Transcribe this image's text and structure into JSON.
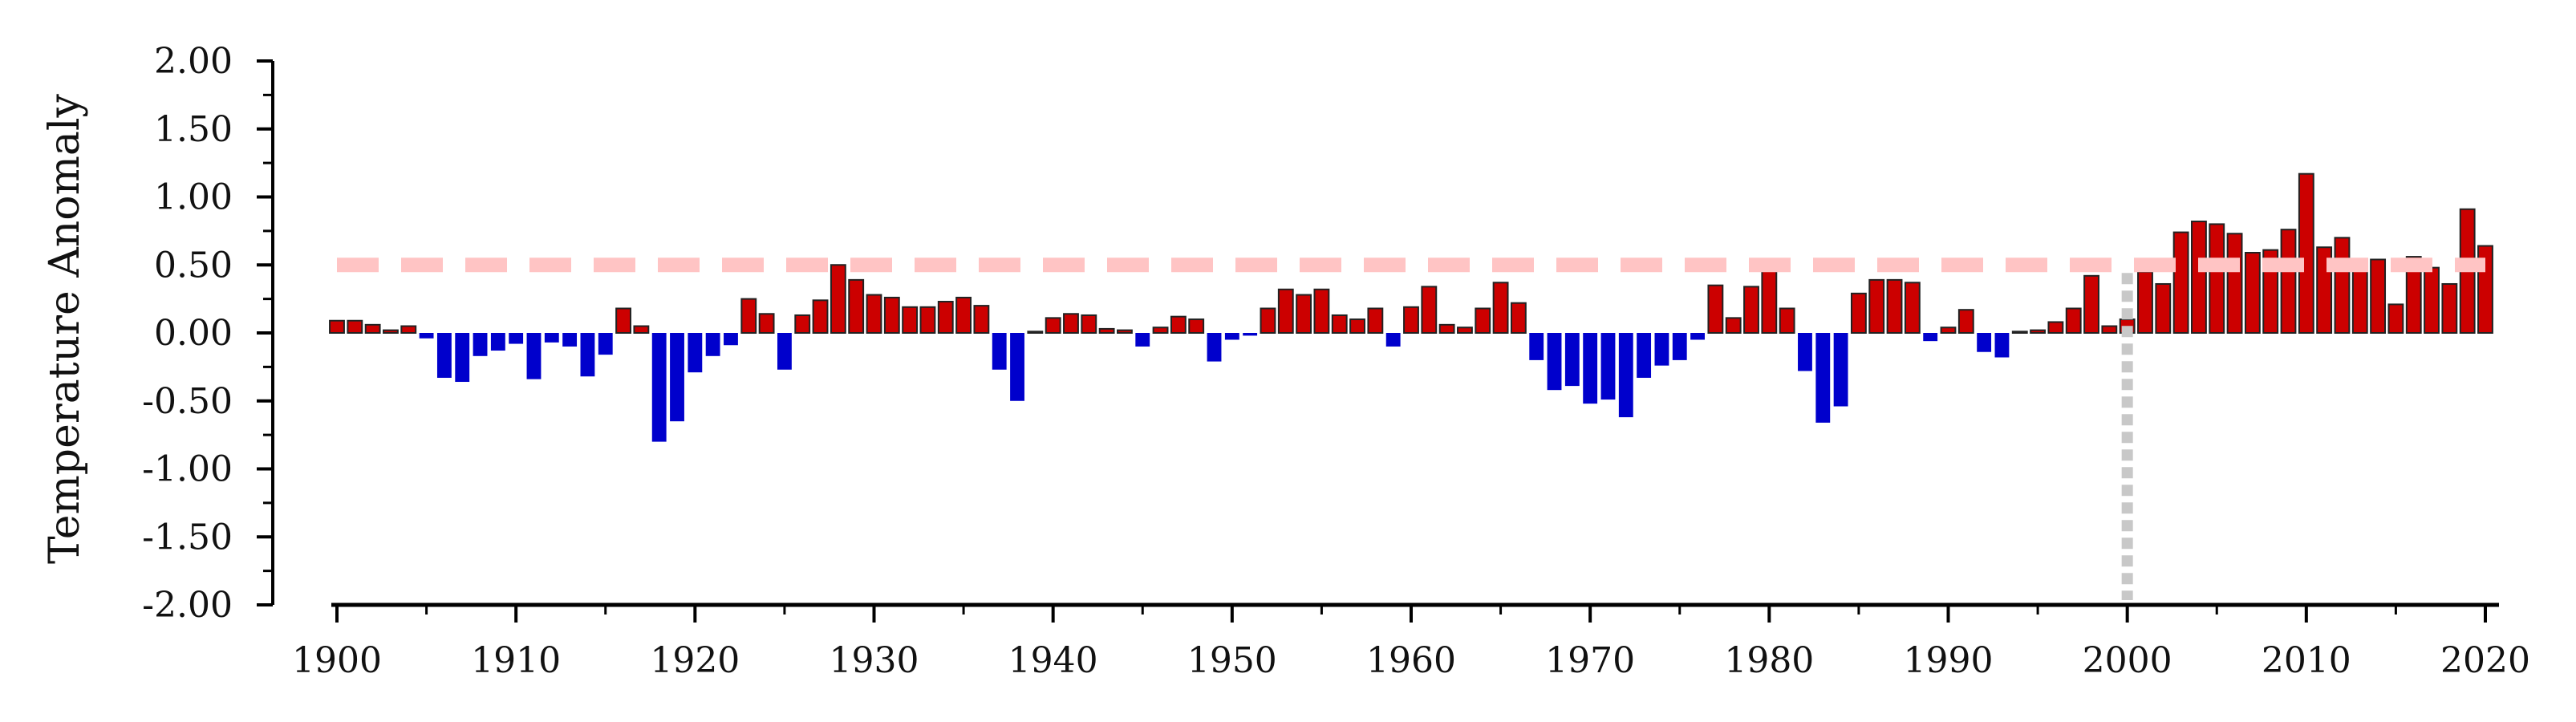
{
  "chart_data": {
    "type": "bar",
    "title": "",
    "xlabel": "",
    "ylabel": "Temperature Anomaly",
    "ylim": [
      -2.0,
      2.0
    ],
    "xlim": [
      1900,
      2020
    ],
    "grid": false,
    "legend": "none",
    "y_ticks": [
      "2.00",
      "1.50",
      "1.00",
      "0.50",
      "0.00",
      "-0.50",
      "-1.00",
      "-1.50",
      "-2.00"
    ],
    "x_ticks": [
      "1900",
      "1910",
      "1920",
      "1930",
      "1940",
      "1950",
      "1960",
      "1970",
      "1980",
      "1990",
      "2000",
      "2010",
      "2020"
    ],
    "reference_line_y": 0.5,
    "reference_line_x": 2000,
    "colors": {
      "positive": "#cc0000",
      "negative": "#0000cc",
      "bar_outline": "#222222",
      "threshold_line": "#ffc4c4",
      "reference_line": "#c8c8c8",
      "axis": "#000000"
    },
    "years": [
      1900,
      1901,
      1902,
      1903,
      1904,
      1905,
      1906,
      1907,
      1908,
      1909,
      1910,
      1911,
      1912,
      1913,
      1914,
      1915,
      1916,
      1917,
      1918,
      1919,
      1920,
      1921,
      1922,
      1923,
      1924,
      1925,
      1926,
      1927,
      1928,
      1929,
      1930,
      1931,
      1932,
      1933,
      1934,
      1935,
      1936,
      1937,
      1938,
      1939,
      1940,
      1941,
      1942,
      1943,
      1944,
      1945,
      1946,
      1947,
      1948,
      1949,
      1950,
      1951,
      1952,
      1953,
      1954,
      1955,
      1956,
      1957,
      1958,
      1959,
      1960,
      1961,
      1962,
      1963,
      1964,
      1965,
      1966,
      1967,
      1968,
      1969,
      1970,
      1971,
      1972,
      1973,
      1974,
      1975,
      1976,
      1977,
      1978,
      1979,
      1980,
      1981,
      1982,
      1983,
      1984,
      1985,
      1986,
      1987,
      1988,
      1989,
      1990,
      1991,
      1992,
      1993,
      1994,
      1995,
      1996,
      1997,
      1998,
      1999,
      2000,
      2001,
      2002,
      2003,
      2004,
      2005,
      2006,
      2007,
      2008,
      2009,
      2010,
      2011,
      2012,
      2013,
      2014,
      2015,
      2016,
      2017,
      2018,
      2019,
      2020
    ],
    "values": [
      0.09,
      0.09,
      0.06,
      0.02,
      0.05,
      -0.04,
      -0.33,
      -0.36,
      -0.17,
      -0.13,
      -0.08,
      -0.34,
      -0.07,
      -0.1,
      -0.32,
      -0.16,
      0.18,
      0.05,
      -0.8,
      -0.65,
      -0.29,
      -0.17,
      -0.09,
      0.25,
      0.14,
      -0.27,
      0.13,
      0.24,
      0.5,
      0.39,
      0.28,
      0.26,
      0.19,
      0.19,
      0.23,
      0.26,
      0.2,
      -0.27,
      -0.5,
      0.01,
      0.11,
      0.14,
      0.13,
      0.03,
      0.02,
      -0.1,
      0.04,
      0.12,
      0.1,
      -0.21,
      -0.05,
      -0.02,
      0.18,
      0.32,
      0.28,
      0.32,
      0.13,
      0.1,
      0.18,
      -0.1,
      0.19,
      0.34,
      0.06,
      0.04,
      0.18,
      0.37,
      0.22,
      -0.2,
      -0.42,
      -0.39,
      -0.52,
      -0.49,
      -0.62,
      -0.33,
      -0.24,
      -0.2,
      -0.05,
      0.35,
      0.11,
      0.34,
      0.46,
      0.18,
      -0.28,
      -0.66,
      -0.54,
      0.29,
      0.39,
      0.39,
      0.37,
      -0.06,
      0.04,
      0.17,
      -0.14,
      -0.18,
      0.01,
      0.02,
      0.08,
      0.18,
      0.42,
      0.05,
      0.1,
      0.45,
      0.36,
      0.74,
      0.82,
      0.8,
      0.73,
      0.59,
      0.61,
      0.76,
      1.17,
      0.63,
      0.7,
      0.53,
      0.54,
      0.21,
      0.56,
      0.48,
      0.36,
      0.91,
      0.64
    ]
  }
}
